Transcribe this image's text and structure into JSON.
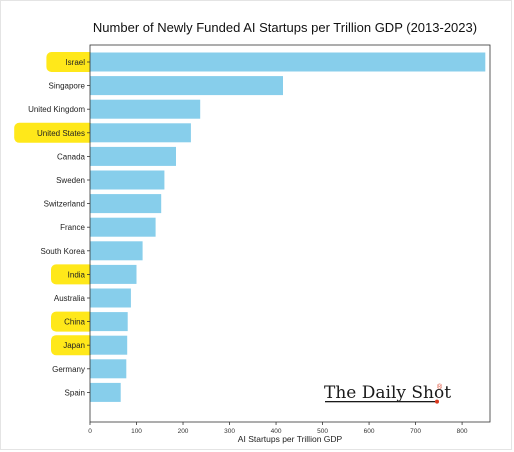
{
  "chart_data": {
    "type": "bar",
    "orientation": "horizontal",
    "title": "Number of Newly Funded AI Startups per Trillion GDP (2013-2023)",
    "xlabel": "AI Startups per Trillion GDP",
    "ylabel": "",
    "xlim": [
      0,
      860
    ],
    "xticks": [
      0,
      100,
      200,
      300,
      400,
      500,
      600,
      700,
      800
    ],
    "categories": [
      "Israel",
      "Singapore",
      "United Kingdom",
      "United States",
      "Canada",
      "Sweden",
      "Switzerland",
      "France",
      "South Korea",
      "India",
      "Australia",
      "China",
      "Japan",
      "Germany",
      "Spain"
    ],
    "values": [
      850,
      415,
      237,
      217,
      185,
      160,
      153,
      141,
      113,
      100,
      88,
      81,
      80,
      78,
      66
    ],
    "highlighted": [
      "Israel",
      "United States",
      "India",
      "China",
      "Japan"
    ],
    "grid": false,
    "bar_color": "#87ceeb",
    "highlight_color": "#ffe81a"
  },
  "branding": {
    "logo_text": "The Daily Shot",
    "logo_mark": "®",
    "logo_mark_color": "#d9381e"
  }
}
